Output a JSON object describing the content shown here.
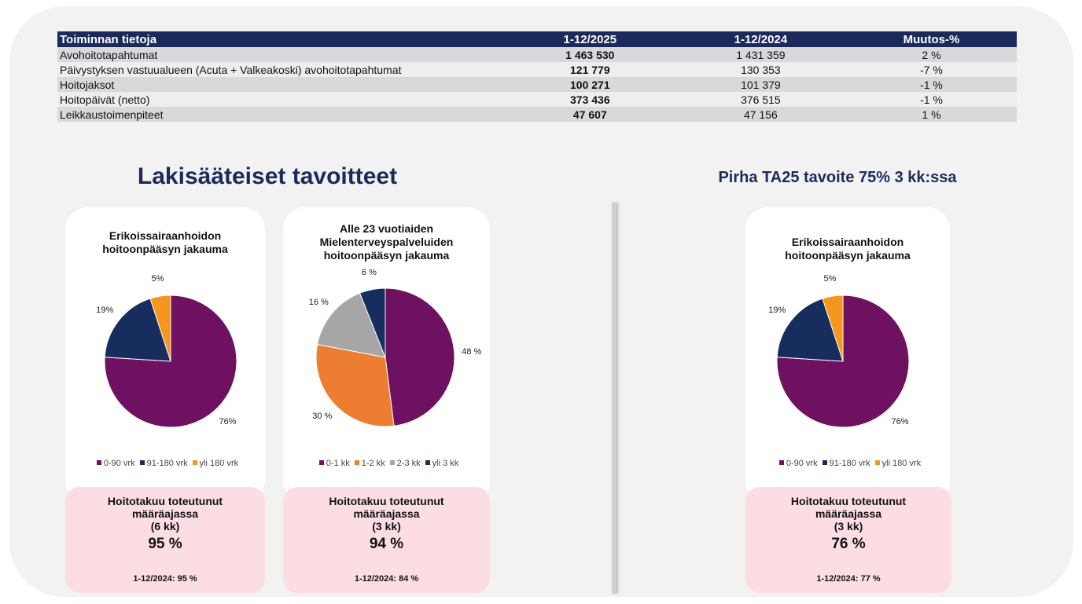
{
  "table": {
    "header": [
      "Toiminnan tietoja",
      "1-12/2025",
      "1-12/2024",
      "Muutos-%"
    ],
    "rows": [
      [
        "Avohoitotapahtumat",
        "1 463 530",
        "1 431 359",
        "2 %"
      ],
      [
        "Päivystyksen vastuualueen (Acuta + Valkeakoski) avohoitotapahtumat",
        "121 779",
        "130 353",
        "-7 %"
      ],
      [
        "Hoitojaksot",
        "100 271",
        "101 379",
        "-1 %"
      ],
      [
        "Hoitopäivät (netto)",
        "373 436",
        "376 515",
        "-1 %"
      ],
      [
        "Leikkaustoimenpiteet",
        "47 607",
        "47 156",
        "1 %"
      ]
    ]
  },
  "sections": [
    "Lakisääteiset tavoitteet",
    "Pirha TA25 tavoite 75% 3 kk:ssa"
  ],
  "chart_data": [
    {
      "type": "pie",
      "title": "Erikoissairaanhoidon hoitoonpääsyn jakauma",
      "categories": [
        "0-90 vrk",
        "91-180 vrk",
        "yli 180 vrk"
      ],
      "values": [
        76,
        19,
        5
      ],
      "value_labels": [
        "76%",
        "19%",
        "5%"
      ],
      "colors": [
        "#6d1160",
        "#172d5e",
        "#f5961e"
      ]
    },
    {
      "type": "pie",
      "title": "Alle 23 vuotiaiden Mielenterveyspalveluiden hoitoonpääsyn jakauma",
      "categories": [
        "0-1 kk",
        "1-2 kk",
        "2-3 kk",
        "yli 3 kk"
      ],
      "values": [
        48,
        30,
        16,
        6
      ],
      "value_labels": [
        "48 %",
        "30 %",
        "16 %",
        "6 %"
      ],
      "colors": [
        "#6d1160",
        "#ed7d31",
        "#a6a6a6",
        "#172d5e"
      ]
    },
    {
      "type": "pie",
      "title": "Erikoissairaanhoidon hoitoonpääsyn jakauma",
      "categories": [
        "0-90 vrk",
        "91-180 vrk",
        "yli 180 vrk"
      ],
      "values": [
        76,
        19,
        5
      ],
      "value_labels": [
        "76%",
        "19%",
        "5%"
      ],
      "colors": [
        "#6d1160",
        "#172d5e",
        "#f5961e"
      ]
    }
  ],
  "guarantees": [
    {
      "title": "Hoitotakuu toteutunut määräajassa",
      "period": "(6 kk)",
      "value": "95 %",
      "previous": "1-12/2024: 95 %"
    },
    {
      "title": "Hoitotakuu toteutunut määräajassa",
      "period": "(3 kk)",
      "value": "94 %",
      "previous": "1-12/2024: 84 %"
    },
    {
      "title": "Hoitotakuu toteutunut määräajassa",
      "period": "(3 kk)",
      "value": "76 %",
      "previous": "1-12/2024: 77 %"
    }
  ]
}
